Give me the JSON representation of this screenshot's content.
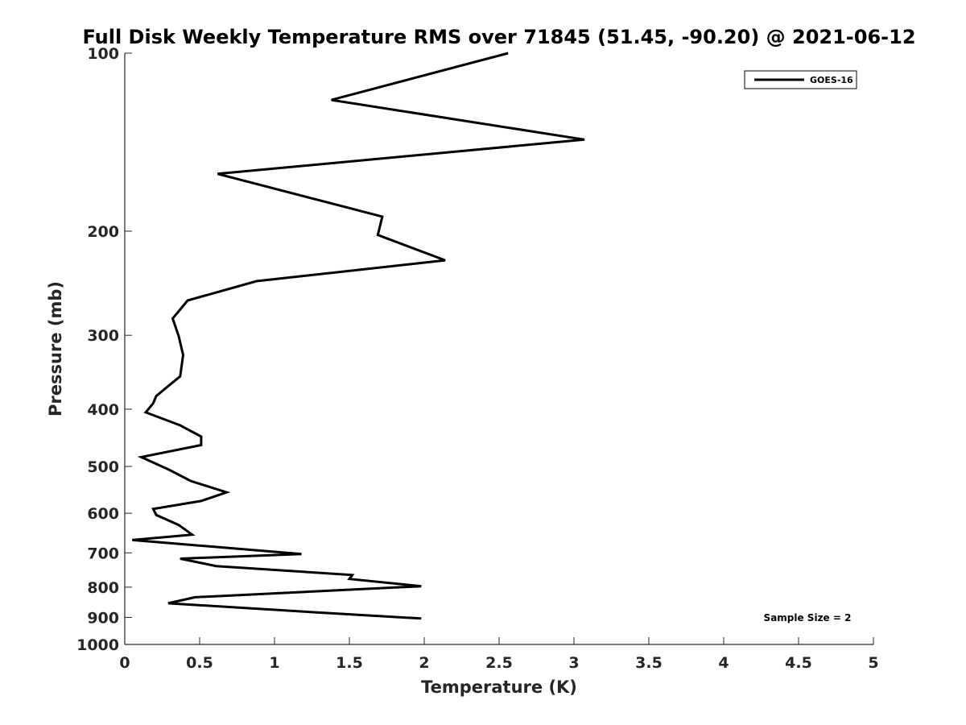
{
  "chart_data": {
    "type": "line",
    "title": "Full Disk Weekly Temperature RMS over 71845 (51.45, -90.20) @ 2021-06-12",
    "xlabel": "Temperature (K)",
    "ylabel": "Pressure (mb)",
    "xlim": [
      0,
      5
    ],
    "ylim": [
      100,
      1000
    ],
    "y_scale": "log",
    "y_reversed": true,
    "x_ticks": [
      "0",
      "0.5",
      "1",
      "1.5",
      "2",
      "2.5",
      "3",
      "3.5",
      "4",
      "4.5",
      "5"
    ],
    "y_ticks": [
      "100",
      "200",
      "300",
      "400",
      "500",
      "600",
      "700",
      "800",
      "900",
      "1000"
    ],
    "grid": false,
    "legend_position": "top-right",
    "series": [
      {
        "name": "GOES-16",
        "color": "#000000",
        "x": [
          2.56,
          1.38,
          3.07,
          0.62,
          1.72,
          1.69,
          2.14,
          0.88,
          0.42,
          0.32,
          0.36,
          0.39,
          0.37,
          0.21,
          0.19,
          0.14,
          0.37,
          0.51,
          0.51,
          0.11,
          0.3,
          0.44,
          0.68,
          0.51,
          0.19,
          0.21,
          0.36,
          0.45,
          0.05,
          1.18,
          0.37,
          0.61,
          1.52,
          1.5,
          1.98,
          0.47,
          0.29,
          1.26,
          1.98
        ],
        "y": [
          100,
          120,
          140,
          160,
          189,
          203,
          224,
          243,
          262,
          281,
          301,
          324,
          352,
          380,
          391,
          405,
          426,
          445,
          460,
          482,
          507,
          529,
          553,
          572,
          590,
          604,
          628,
          652,
          666,
          703,
          716,
          737,
          763,
          775,
          797,
          832,
          852,
          882,
          904
        ]
      }
    ],
    "annotation": "Sample Size = 2"
  }
}
